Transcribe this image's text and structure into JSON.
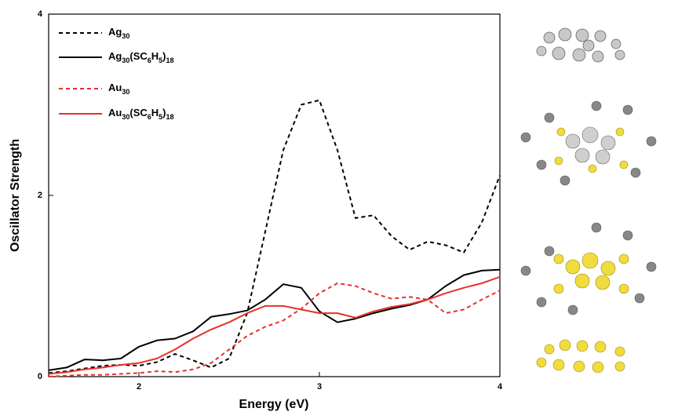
{
  "chart_data": {
    "type": "line",
    "x_label": "Energy (eV)",
    "y_label": "Oscillator Strength",
    "x": [
      1.5,
      1.6,
      1.7,
      1.8,
      1.9,
      2.0,
      2.1,
      2.2,
      2.3,
      2.4,
      2.5,
      2.6,
      2.7,
      2.8,
      2.9,
      3.0,
      3.1,
      3.2,
      3.3,
      3.4,
      3.5,
      3.6,
      3.7,
      3.8,
      3.9,
      4.0
    ],
    "series": [
      {
        "name": "Ag30",
        "color": "#000000",
        "line_style": "dashed",
        "values": [
          0.04,
          0.06,
          0.09,
          0.12,
          0.13,
          0.12,
          0.16,
          0.25,
          0.18,
          0.1,
          0.2,
          0.7,
          1.6,
          2.5,
          3.0,
          3.05,
          2.5,
          1.75,
          1.78,
          1.55,
          1.4,
          1.49,
          1.45,
          1.37,
          1.7,
          2.22
        ]
      },
      {
        "name": "Ag30(SC6H5)18",
        "color": "#000000",
        "line_style": "solid",
        "values": [
          0.07,
          0.1,
          0.19,
          0.18,
          0.2,
          0.33,
          0.4,
          0.42,
          0.5,
          0.66,
          0.69,
          0.73,
          0.85,
          1.02,
          0.98,
          0.72,
          0.6,
          0.64,
          0.7,
          0.75,
          0.79,
          0.85,
          1.0,
          1.12,
          1.17,
          1.18
        ]
      },
      {
        "name": "Au30",
        "color": "#e8302a",
        "line_style": "dashed",
        "values": [
          0.0,
          0.01,
          0.02,
          0.02,
          0.03,
          0.04,
          0.06,
          0.05,
          0.08,
          0.15,
          0.3,
          0.45,
          0.55,
          0.62,
          0.75,
          0.92,
          1.03,
          1.0,
          0.92,
          0.86,
          0.88,
          0.85,
          0.7,
          0.74,
          0.85,
          0.95
        ]
      },
      {
        "name": "Au30(SC6H5)18",
        "color": "#e8302a",
        "line_style": "solid",
        "values": [
          0.03,
          0.05,
          0.08,
          0.1,
          0.13,
          0.15,
          0.2,
          0.3,
          0.42,
          0.52,
          0.6,
          0.7,
          0.78,
          0.78,
          0.74,
          0.7,
          0.7,
          0.65,
          0.72,
          0.77,
          0.8,
          0.85,
          0.92,
          0.98,
          1.03,
          1.1
        ]
      }
    ],
    "xlim": [
      1.5,
      4
    ],
    "xticks": [
      2,
      3,
      4
    ],
    "ylim": [
      0,
      4
    ],
    "yticks": [
      0,
      2,
      4
    ],
    "legend": "upper-left"
  }
}
